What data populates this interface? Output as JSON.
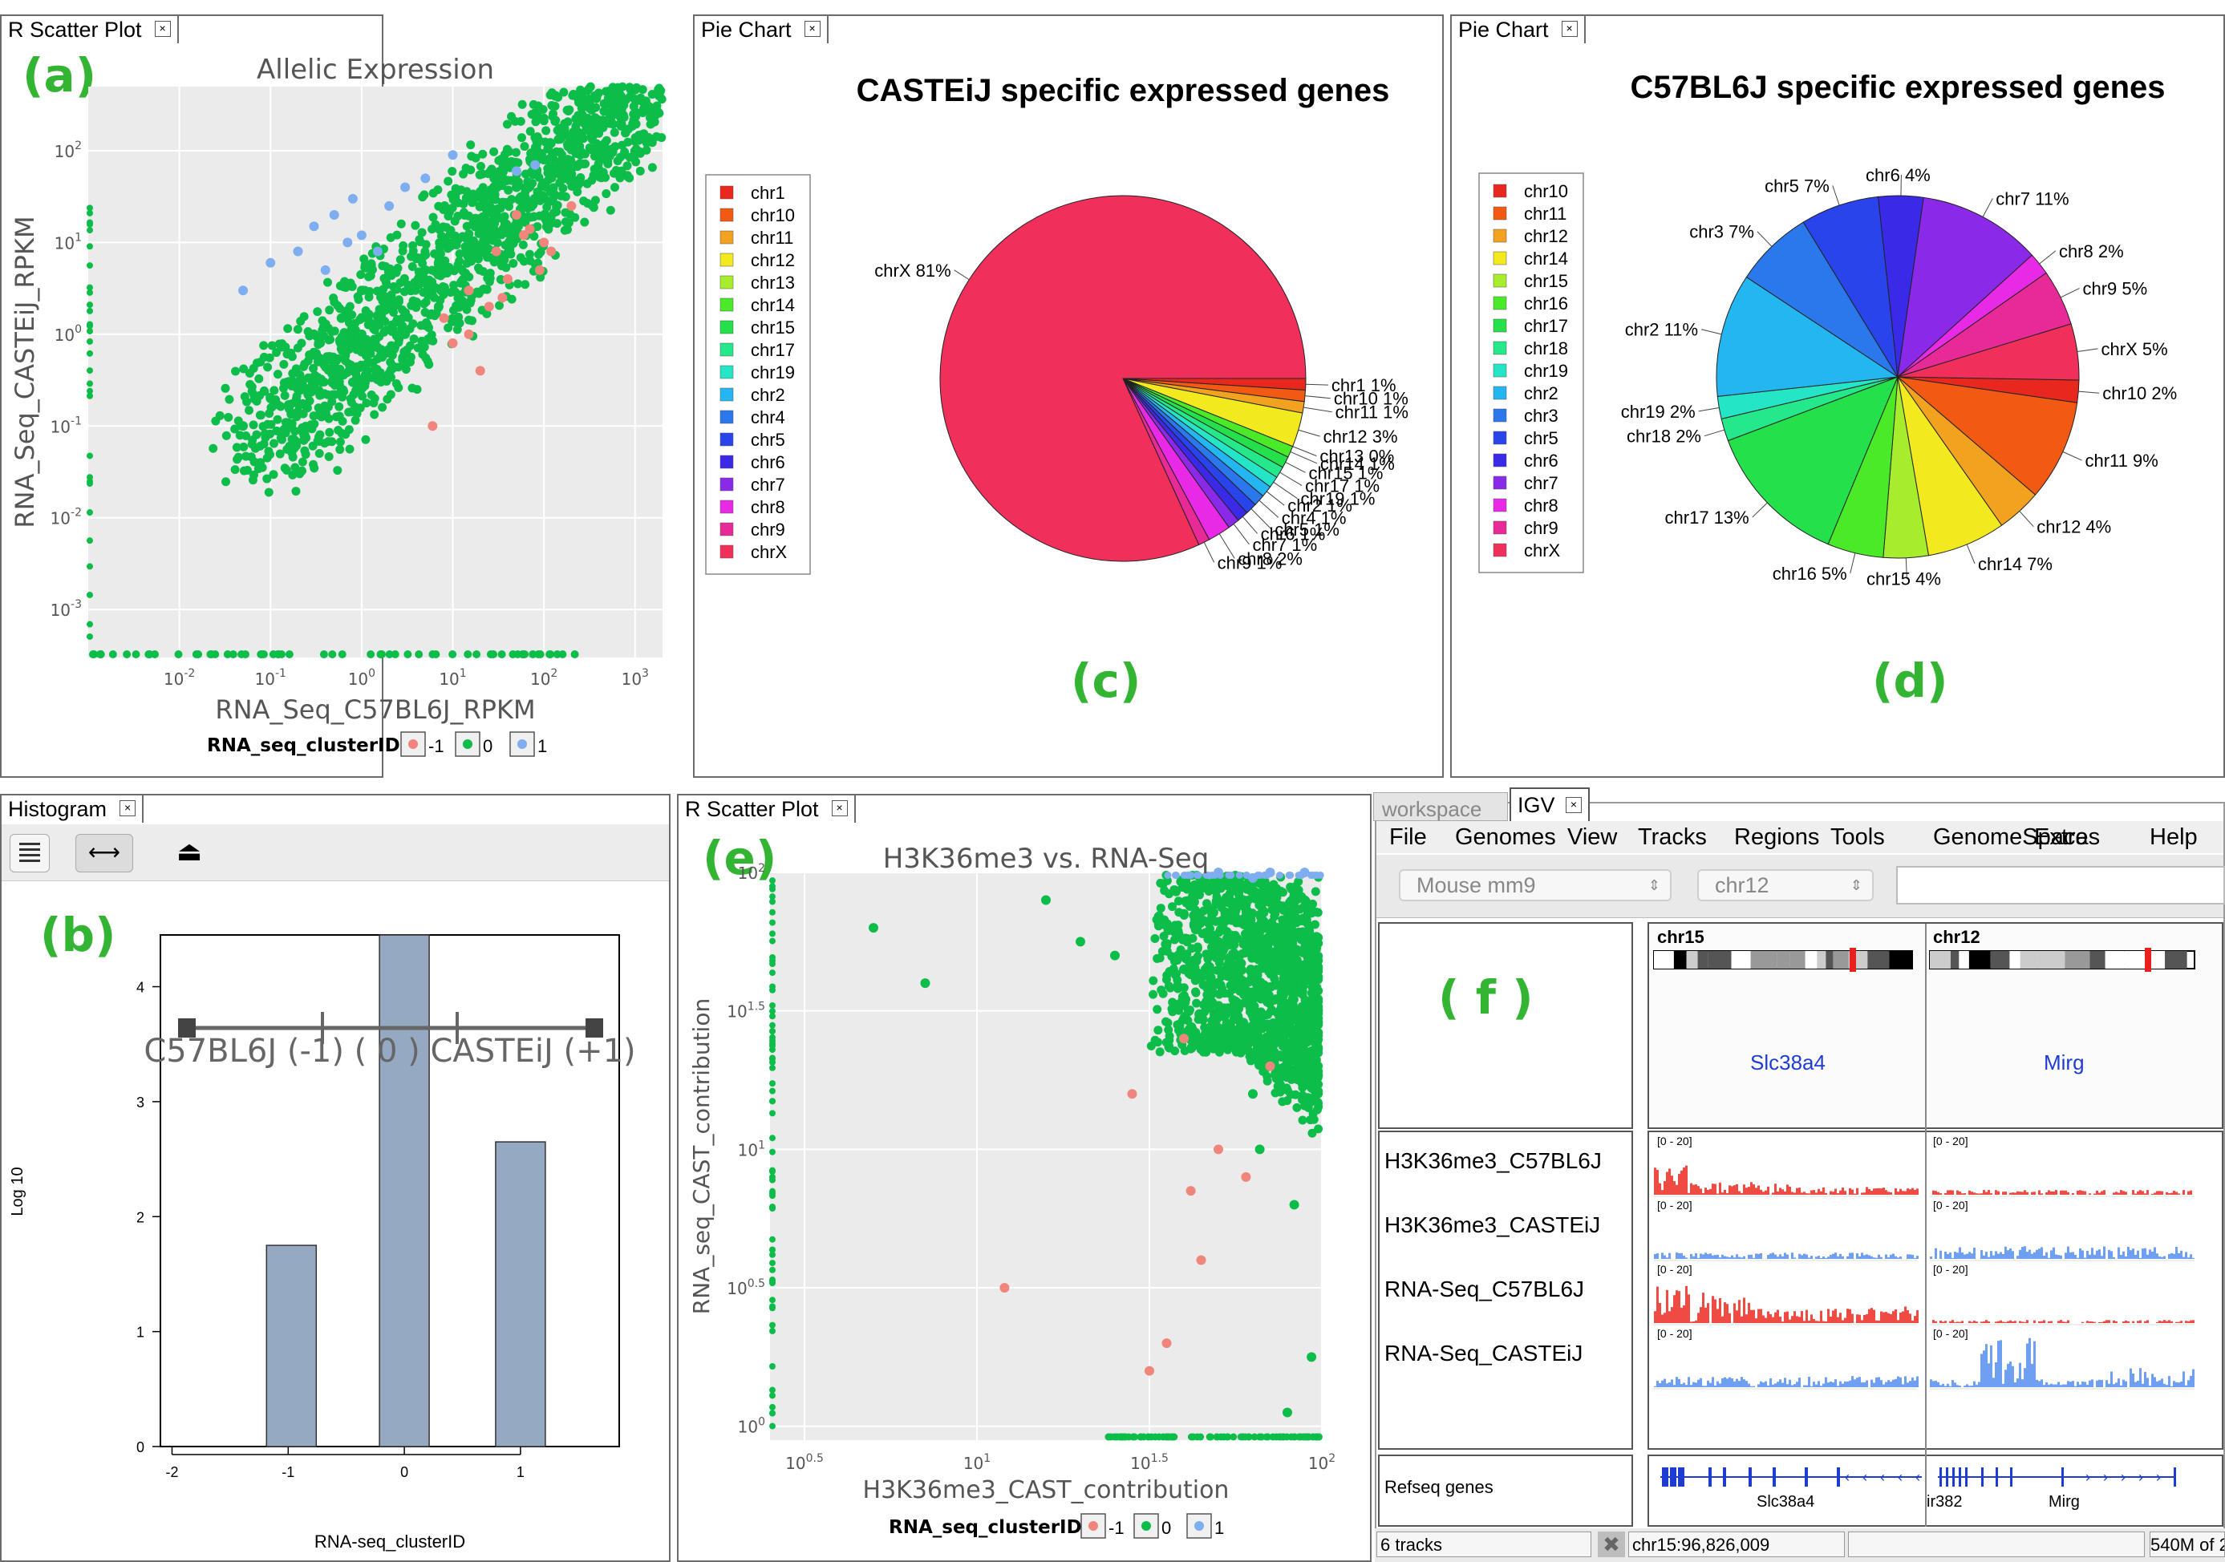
{
  "panels": {
    "a": {
      "tab": "R Scatter Plot",
      "label": "(a)"
    },
    "c": {
      "tab": "Pie Chart",
      "label": "(c)"
    },
    "d": {
      "tab": "Pie Chart",
      "label": "(d)"
    },
    "b": {
      "tab": "Histogram",
      "label": "(b)"
    },
    "e": {
      "tab": "R Scatter Plot",
      "label": "(e)"
    },
    "f": {
      "tab_workspace": "workspace",
      "tab": "IGV",
      "label": "( f )"
    }
  },
  "colors": {
    "cluster_neg": "#f0857b",
    "cluster_zero": "#0dbd4a",
    "cluster_pos": "#7eaef0",
    "plot_bg": "#ebebeb",
    "label_green": "#33b533",
    "hist_bar": "#95a9c2",
    "igv_red": "#f04b43",
    "igv_blue": "#6f9ff0"
  },
  "chart_data": [
    {
      "id": "a",
      "type": "scatter",
      "title": "Allelic Expression",
      "xlabel": "RNA_Seq_C57BL6J_RPKM",
      "ylabel": "RNA_Seq_CASTEiJ_RPKM",
      "x_scale": "log10",
      "y_scale": "log10",
      "xlim": [
        0.001,
        2000
      ],
      "ylim": [
        0.0003,
        500
      ],
      "x_ticks": [
        "10-2",
        "10-1",
        "100",
        "101",
        "102",
        "103"
      ],
      "y_ticks": [
        "10-3",
        "10-2",
        "10-1",
        "100",
        "101",
        "102"
      ],
      "legend_title": "RNA_seq_clusterID",
      "legend": [
        "-1",
        "0",
        "1"
      ],
      "grid": true,
      "series": [
        {
          "name": "-1",
          "points": [
            [
              15,
              3
            ],
            [
              8,
              1.5
            ],
            [
              30,
              8
            ],
            [
              50,
              20
            ],
            [
              60,
              12
            ],
            [
              40,
              4
            ],
            [
              25,
              2
            ],
            [
              100,
              10
            ],
            [
              120,
              8
            ],
            [
              10,
              0.8
            ],
            [
              20,
              0.4
            ],
            [
              6,
              0.1
            ],
            [
              35,
              2.5
            ],
            [
              200,
              25
            ],
            [
              90,
              5
            ],
            [
              70,
              14
            ],
            [
              15,
              1
            ]
          ]
        },
        {
          "name": "0",
          "points": [
            [
              1,
              1
            ],
            [
              0.5,
              0.5
            ],
            [
              2,
              2
            ],
            [
              5,
              5
            ],
            [
              10,
              10
            ],
            [
              20,
              25
            ],
            [
              50,
              40
            ],
            [
              100,
              80
            ],
            [
              0.2,
              0.3
            ],
            [
              0.1,
              0.2
            ],
            [
              0.05,
              0.1
            ],
            [
              0.3,
              1
            ],
            [
              0.8,
              0.3
            ],
            [
              3,
              1
            ],
            [
              1,
              3
            ],
            [
              7,
              2
            ],
            [
              0.6,
              1.5
            ],
            [
              30,
              20
            ],
            [
              200,
              150
            ],
            [
              700,
              200
            ]
          ]
        },
        {
          "name": "1",
          "points": [
            [
              0.3,
              15
            ],
            [
              0.5,
              20
            ],
            [
              0.8,
              30
            ],
            [
              1,
              12
            ],
            [
              2,
              25
            ],
            [
              0.2,
              8
            ],
            [
              0.1,
              6
            ],
            [
              0.7,
              10
            ],
            [
              3,
              40
            ],
            [
              5,
              50
            ],
            [
              10,
              90
            ],
            [
              50,
              60
            ],
            [
              80,
              70
            ],
            [
              0.05,
              3
            ],
            [
              1.5,
              8
            ],
            [
              0.4,
              5
            ]
          ]
        }
      ]
    },
    {
      "id": "c",
      "type": "pie",
      "title": "CASTEiJ specific expressed genes",
      "categories": [
        "chr1",
        "chr10",
        "chr11",
        "chr12",
        "chr13",
        "chr14",
        "chr15",
        "chr17",
        "chr19",
        "chr2",
        "chr4",
        "chr5",
        "chr6",
        "chr7",
        "chr8",
        "chr9",
        "chrX"
      ],
      "values": [
        1,
        1,
        1,
        3,
        0,
        1,
        1,
        1,
        1,
        1,
        1,
        1,
        1,
        1,
        2,
        1,
        81
      ],
      "colors": [
        "#e8281e",
        "#f25a14",
        "#f2a21e",
        "#f2ea1e",
        "#a8ec2e",
        "#4aea28",
        "#24e04a",
        "#24e88a",
        "#24e6c6",
        "#24b6f0",
        "#2a78ec",
        "#2a44ec",
        "#3a2ae8",
        "#8a2ae8",
        "#e82ae6",
        "#e82a96",
        "#f0305a"
      ]
    },
    {
      "id": "d",
      "type": "pie",
      "title": "C57BL6J specific expressed genes",
      "categories": [
        "chr10",
        "chr11",
        "chr12",
        "chr14",
        "chr15",
        "chr16",
        "chr17",
        "chr18",
        "chr19",
        "chr2",
        "chr3",
        "chr5",
        "chr6",
        "chr7",
        "chr8",
        "chr9",
        "chrX"
      ],
      "values": [
        2,
        9,
        4,
        7,
        4,
        5,
        13,
        2,
        2,
        11,
        7,
        7,
        4,
        11,
        2,
        5,
        5
      ],
      "colors": [
        "#e8281e",
        "#f25a14",
        "#f2a21e",
        "#f2ea1e",
        "#a8ec2e",
        "#4aea28",
        "#24e04a",
        "#24e88a",
        "#24e6c6",
        "#24b6f0",
        "#2a78ec",
        "#2a44ec",
        "#3a2ae8",
        "#8a2ae8",
        "#e82ae6",
        "#e82a96",
        "#f0305a"
      ]
    },
    {
      "id": "b",
      "type": "bar",
      "categories": [
        -1,
        0,
        1
      ],
      "values": [
        1.75,
        4.45,
        2.65
      ],
      "xlabel": "RNA-seq_clusterID",
      "ylabel": "Log 10",
      "xlim": [
        -2,
        2
      ],
      "ylim": [
        0,
        4.45
      ],
      "x_ticks": [
        "-2",
        "-1",
        "0",
        "1"
      ],
      "y_ticks": [
        "0",
        "1",
        "2",
        "3",
        "4"
      ],
      "annotation": "C57BL6J (-1) ( 0 ) CASTEiJ (+1)"
    },
    {
      "id": "e",
      "type": "scatter",
      "title": "H3K36me3 vs. RNA-Seq",
      "xlabel": "H3K36me3_CAST_contribution",
      "ylabel": "RNA_seq_CAST_contribution",
      "x_ticks": [
        "100.5",
        "101",
        "101.5",
        "102"
      ],
      "y_ticks": [
        "100",
        "100.5",
        "101",
        "101.5",
        "102"
      ],
      "xlim": [
        0.4,
        2.0
      ],
      "ylim": [
        -0.05,
        2.0
      ],
      "legend_title": "RNA_seq_clusterID",
      "legend": [
        "-1",
        "0",
        "1"
      ],
      "grid": true,
      "series": [
        {
          "name": "-1",
          "points": [
            [
              1.45,
              1.2
            ],
            [
              1.6,
              1.4
            ],
            [
              1.65,
              0.6
            ],
            [
              1.55,
              0.3
            ],
            [
              1.7,
              1.0
            ],
            [
              1.08,
              0.5
            ],
            [
              1.85,
              1.3
            ],
            [
              1.5,
              0.2
            ],
            [
              1.62,
              0.85
            ],
            [
              1.78,
              0.9
            ]
          ]
        },
        {
          "name": "0",
          "points": [
            [
              1.85,
              1.8
            ],
            [
              1.7,
              1.75
            ],
            [
              1.9,
              1.7
            ],
            [
              1.6,
              1.85
            ],
            [
              1.95,
              1.9
            ],
            [
              1.75,
              1.6
            ],
            [
              1.88,
              1.5
            ],
            [
              1.8,
              1.2
            ],
            [
              1.92,
              0.8
            ],
            [
              1.6,
              1.65
            ],
            [
              1.2,
              1.9
            ],
            [
              0.7,
              1.8
            ],
            [
              0.85,
              1.6
            ],
            [
              1.4,
              1.7
            ],
            [
              1.97,
              0.25
            ],
            [
              1.9,
              0.05
            ],
            [
              1.3,
              1.75
            ],
            [
              1.82,
              1.0
            ]
          ]
        },
        {
          "name": "1",
          "points": [
            [
              1.7,
              2.0
            ],
            [
              1.85,
              2.0
            ],
            [
              1.95,
              2.0
            ],
            [
              1.8,
              1.98
            ]
          ]
        }
      ]
    }
  ],
  "igv": {
    "menu": [
      "File",
      "Genomes",
      "View",
      "Tracks",
      "Regions",
      "Tools",
      "GenomeSpace",
      "Extras",
      "Help"
    ],
    "genome_select": "Mouse mm9",
    "chrom_select": "chr12",
    "loci": [
      "chr15",
      "chr12"
    ],
    "genes_top": [
      "Slc38a4",
      "Mirg"
    ],
    "tracks": [
      "H3K36me3_C57BL6J",
      "H3K36me3_CASTEiJ",
      "RNA-Seq_C57BL6J",
      "RNA-Seq_CASTEiJ"
    ],
    "range_label": "[0 - 20]",
    "refseq_label": "Refseq genes",
    "refseq_genes": [
      "Slc38a4",
      "ir382",
      "Mirg"
    ],
    "status_tracks": "6 tracks",
    "status_locus": "chr15:96,826,009",
    "status_mem": "540M of 2"
  }
}
